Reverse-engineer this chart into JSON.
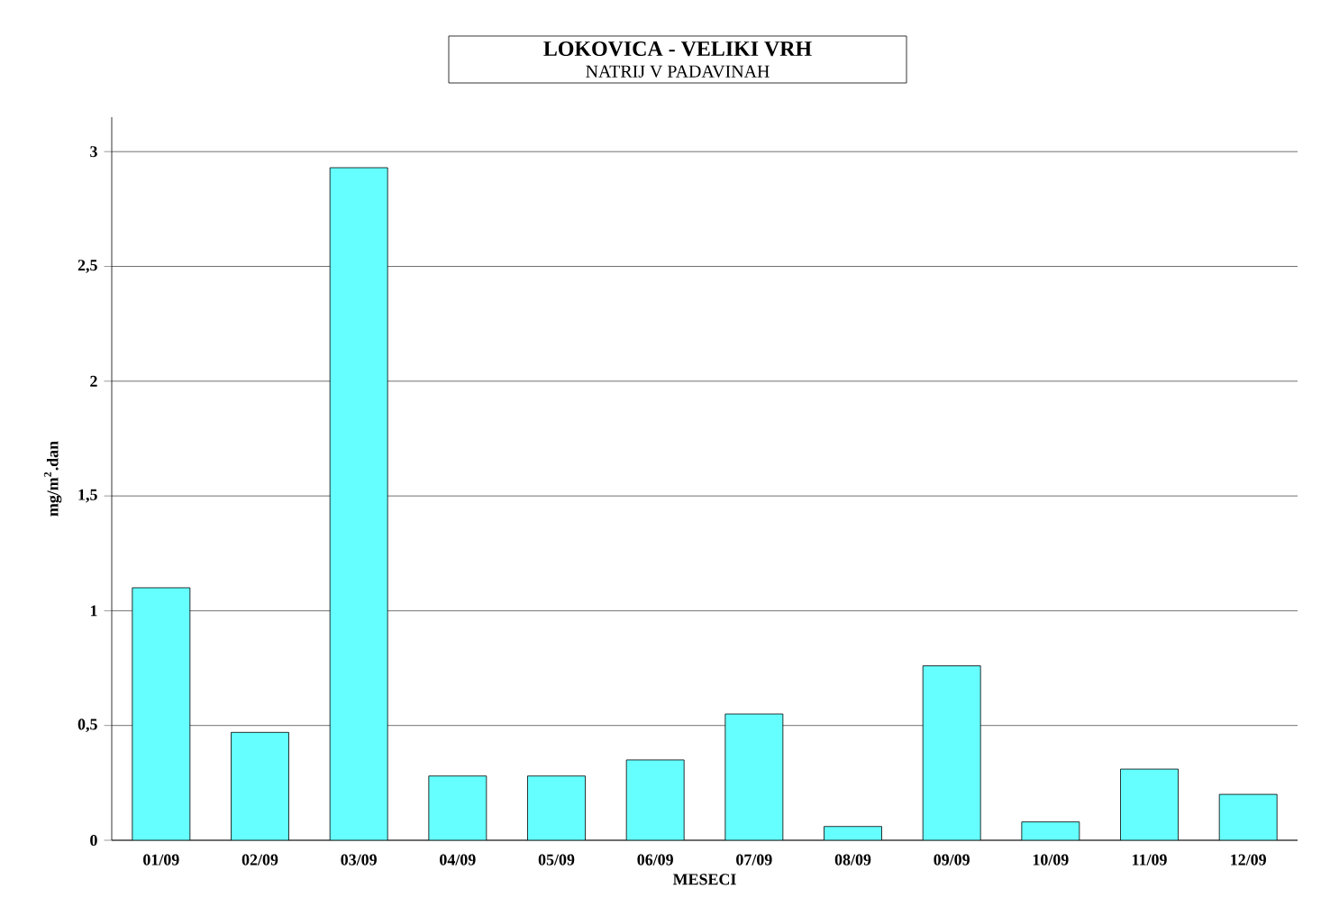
{
  "chart_data": {
    "type": "bar",
    "title": "LOKOVICA - VELIKI VRH",
    "subtitle": "NATRIJ V PADAVINAH",
    "xlabel": "MESECI",
    "ylabel": "mg/m$^{2}$.dan",
    "categories": [
      "01/09",
      "02/09",
      "03/09",
      "04/09",
      "05/09",
      "06/09",
      "07/09",
      "08/09",
      "09/09",
      "10/09",
      "11/09",
      "12/09"
    ],
    "values": [
      1.1,
      0.47,
      2.93,
      0.28,
      0.28,
      0.35,
      0.55,
      0.06,
      0.76,
      0.08,
      0.31,
      0.2
    ],
    "color": "#66ffff",
    "ylim": [
      0,
      3.15
    ],
    "yticks": [
      0,
      {
        "value": 0.5,
        "label": "0,5"
      },
      1,
      {
        "value": 1.5,
        "label": "1,5"
      },
      2,
      {
        "value": 2.5,
        "label": "2,5"
      },
      3
    ],
    "grid": "y"
  }
}
